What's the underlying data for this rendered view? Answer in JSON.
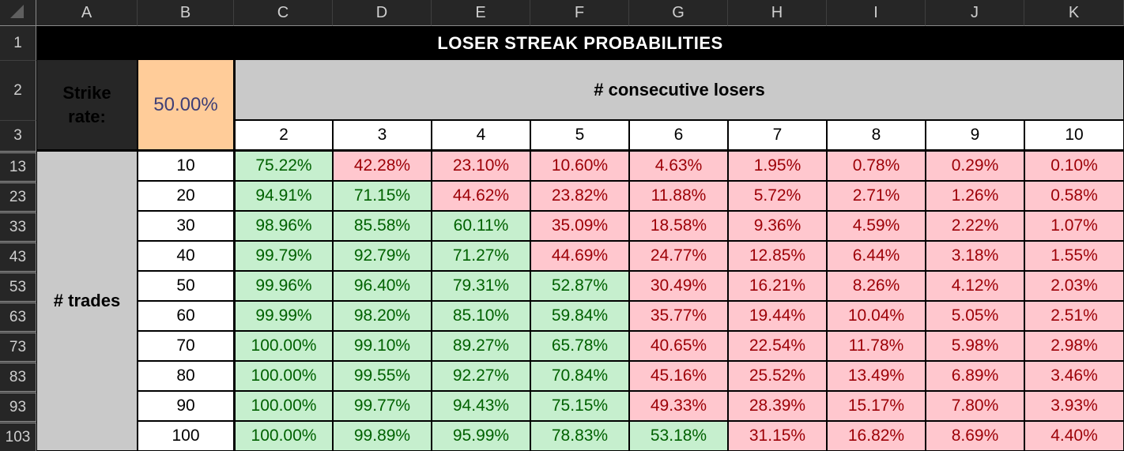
{
  "sheet": {
    "title": "LOSER STREAK PROBABILITIES",
    "column_headers": [
      "A",
      "B",
      "C",
      "D",
      "E",
      "F",
      "G",
      "H",
      "I",
      "J",
      "K"
    ],
    "row_headers": [
      "1",
      "2",
      "3",
      "13",
      "23",
      "33",
      "43",
      "53",
      "63",
      "73",
      "83",
      "93",
      "103"
    ],
    "strike_rate_label": "Strike rate:",
    "strike_rate_value": "50.00%",
    "consecutive_losers_label": "# consecutive losers",
    "streak_lengths": [
      "2",
      "3",
      "4",
      "5",
      "6",
      "7",
      "8",
      "9",
      "10"
    ],
    "trades_label": "# trades",
    "rows": [
      {
        "trades": "10",
        "values": [
          "75.22%",
          "42.28%",
          "23.10%",
          "10.60%",
          "4.63%",
          "1.95%",
          "0.78%",
          "0.29%",
          "0.10%"
        ]
      },
      {
        "trades": "20",
        "values": [
          "94.91%",
          "71.15%",
          "44.62%",
          "23.82%",
          "11.88%",
          "5.72%",
          "2.71%",
          "1.26%",
          "0.58%"
        ]
      },
      {
        "trades": "30",
        "values": [
          "98.96%",
          "85.58%",
          "60.11%",
          "35.09%",
          "18.58%",
          "9.36%",
          "4.59%",
          "2.22%",
          "1.07%"
        ]
      },
      {
        "trades": "40",
        "values": [
          "99.79%",
          "92.79%",
          "71.27%",
          "44.69%",
          "24.77%",
          "12.85%",
          "6.44%",
          "3.18%",
          "1.55%"
        ]
      },
      {
        "trades": "50",
        "values": [
          "99.96%",
          "96.40%",
          "79.31%",
          "52.87%",
          "30.49%",
          "16.21%",
          "8.26%",
          "4.12%",
          "2.03%"
        ]
      },
      {
        "trades": "60",
        "values": [
          "99.99%",
          "98.20%",
          "85.10%",
          "59.84%",
          "35.77%",
          "19.44%",
          "10.04%",
          "5.05%",
          "2.51%"
        ]
      },
      {
        "trades": "70",
        "values": [
          "100.00%",
          "99.10%",
          "89.27%",
          "65.78%",
          "40.65%",
          "22.54%",
          "11.78%",
          "5.98%",
          "2.98%"
        ]
      },
      {
        "trades": "80",
        "values": [
          "100.00%",
          "99.55%",
          "92.27%",
          "70.84%",
          "45.16%",
          "25.52%",
          "13.49%",
          "6.89%",
          "3.46%"
        ]
      },
      {
        "trades": "90",
        "values": [
          "100.00%",
          "99.77%",
          "94.43%",
          "75.15%",
          "49.33%",
          "28.39%",
          "15.17%",
          "7.80%",
          "3.93%"
        ]
      },
      {
        "trades": "100",
        "values": [
          "100.00%",
          "99.89%",
          "95.99%",
          "78.83%",
          "53.18%",
          "31.15%",
          "16.82%",
          "8.69%",
          "4.40%"
        ]
      }
    ],
    "good_threshold_percent": 50
  },
  "colors": {
    "good_bg": "#C6EFCE",
    "good_text": "#006100",
    "bad_bg": "#FFC7CE",
    "bad_text": "#9C0006",
    "input_bg": "#FFCC99",
    "input_text": "#3F3F76",
    "band_bg": "#C9C9C9",
    "title_bg": "#000000",
    "title_text": "#FFFFFF",
    "header_bg": "#262626",
    "header_text": "#CFCFCF"
  }
}
